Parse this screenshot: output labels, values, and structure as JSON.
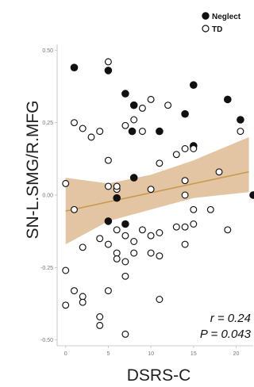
{
  "chart_data": {
    "type": "scatter",
    "xlabel": "DSRS-C",
    "ylabel": "SN-L.SMG/R.MFG",
    "xlim": [
      -1,
      22
    ],
    "ylim": [
      -0.52,
      0.52
    ],
    "xticks": [
      0,
      5,
      10,
      15,
      20
    ],
    "yticks": [
      0.5,
      0.25,
      0.0,
      -0.25,
      -0.5
    ],
    "ytick_labels": [
      "0.50",
      "0.25",
      "0.00",
      "-0.25",
      "-0.50"
    ],
    "legend": {
      "position": "top-right",
      "entries": [
        {
          "label": "Neglect",
          "marker": "filled-circle"
        },
        {
          "label": "TD",
          "marker": "open-circle"
        }
      ]
    },
    "series": [
      {
        "name": "Neglect",
        "marker": "filled",
        "color": "#111111",
        "points": [
          [
            1,
            0.44
          ],
          [
            5,
            0.43
          ],
          [
            7,
            0.35
          ],
          [
            8,
            0.31
          ],
          [
            7.8,
            0.22
          ],
          [
            11,
            0.22
          ],
          [
            14,
            0.28
          ],
          [
            15,
            0.38
          ],
          [
            15,
            0.17
          ],
          [
            19,
            0.33
          ],
          [
            20.5,
            0.26
          ],
          [
            8,
            0.06
          ],
          [
            6,
            -0.01
          ],
          [
            5,
            -0.09
          ],
          [
            7,
            -0.1
          ],
          [
            22,
            0.0
          ]
        ]
      },
      {
        "name": "TD",
        "marker": "open",
        "color": "#111111",
        "points": [
          [
            5,
            0.46
          ],
          [
            9,
            0.3
          ],
          [
            10,
            0.33
          ],
          [
            12,
            0.31
          ],
          [
            7,
            0.24
          ],
          [
            8,
            0.26
          ],
          [
            9,
            0.22
          ],
          [
            1,
            0.25
          ],
          [
            2,
            0.23
          ],
          [
            3,
            0.2
          ],
          [
            4,
            0.22
          ],
          [
            5,
            0.12
          ],
          [
            14,
            0.16
          ],
          [
            15,
            0.16
          ],
          [
            13,
            0.14
          ],
          [
            11,
            0.11
          ],
          [
            5,
            0.03
          ],
          [
            6,
            0.02
          ],
          [
            6,
            0.03
          ],
          [
            10,
            0.02
          ],
          [
            14,
            0.05
          ],
          [
            18,
            0.08
          ],
          [
            20.5,
            0.22
          ],
          [
            0,
            0.04
          ],
          [
            1,
            -0.05
          ],
          [
            2,
            -0.18
          ],
          [
            4,
            -0.15
          ],
          [
            5,
            -0.17
          ],
          [
            6,
            -0.12
          ],
          [
            6,
            -0.2
          ],
          [
            7,
            -0.14
          ],
          [
            8,
            -0.16
          ],
          [
            9,
            -0.12
          ],
          [
            10,
            -0.14
          ],
          [
            11,
            -0.13
          ],
          [
            13,
            -0.11
          ],
          [
            15,
            -0.05
          ],
          [
            15,
            -0.1
          ],
          [
            17,
            -0.05
          ],
          [
            19,
            -0.12
          ],
          [
            14,
            -0.17
          ],
          [
            14,
            -0.11
          ],
          [
            6,
            -0.22
          ],
          [
            7,
            -0.23
          ],
          [
            8,
            -0.2
          ],
          [
            10,
            -0.2
          ],
          [
            11,
            -0.21
          ],
          [
            5,
            -0.33
          ],
          [
            0,
            -0.26
          ],
          [
            1,
            -0.33
          ],
          [
            2,
            -0.35
          ],
          [
            0,
            -0.38
          ],
          [
            2,
            -0.37
          ],
          [
            4,
            -0.42
          ],
          [
            4,
            -0.45
          ],
          [
            7,
            -0.48
          ],
          [
            11,
            -0.36
          ],
          [
            7,
            -0.28
          ],
          [
            14,
            0.0
          ]
        ]
      }
    ],
    "fit": {
      "type": "linear",
      "slope": 0.0063,
      "intercept": -0.055,
      "x_range": [
        0,
        21.5
      ],
      "color": "#c89a4a",
      "band_color": "#d9b285",
      "band": {
        "x": [
          0,
          5,
          10,
          15,
          21.5
        ],
        "lower": [
          -0.17,
          -0.09,
          -0.05,
          -0.01,
          0.01
        ],
        "upper": [
          0.06,
          0.04,
          0.07,
          0.12,
          0.2
        ]
      }
    },
    "annotations": [
      {
        "key": "r",
        "text": "r = 0.24"
      },
      {
        "key": "p",
        "text": "P = 0.043"
      }
    ],
    "grid": false
  }
}
